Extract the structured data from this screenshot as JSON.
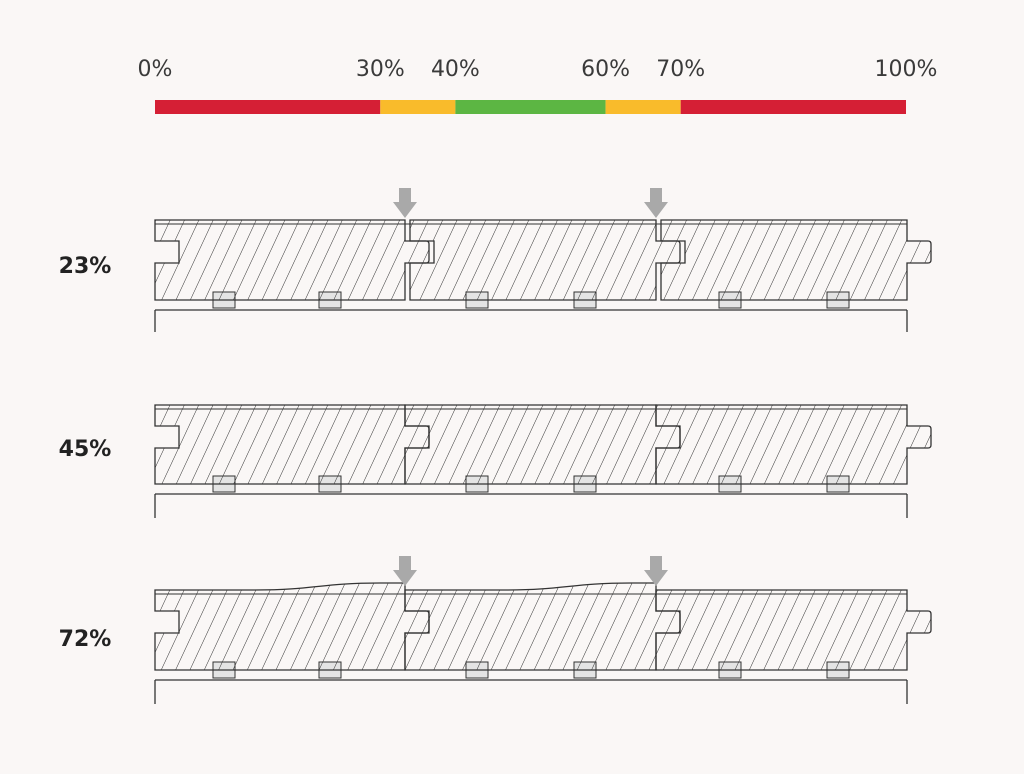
{
  "scale": {
    "ticks": [
      {
        "value": 0,
        "label": "0%"
      },
      {
        "value": 30,
        "label": "30%"
      },
      {
        "value": 40,
        "label": "40%"
      },
      {
        "value": 60,
        "label": "60%"
      },
      {
        "value": 70,
        "label": "70%"
      },
      {
        "value": 100,
        "label": "100%"
      }
    ],
    "segments": [
      {
        "from": 0,
        "to": 30,
        "color": "#d51f35"
      },
      {
        "from": 30,
        "to": 40,
        "color": "#f9bb2b"
      },
      {
        "from": 40,
        "to": 60,
        "color": "#5cb643"
      },
      {
        "from": 60,
        "to": 70,
        "color": "#f9bb2b"
      },
      {
        "from": 70,
        "to": 100,
        "color": "#d51f35"
      }
    ]
  },
  "rows": [
    {
      "label": "23%",
      "state": "gapped",
      "arrows": true
    },
    {
      "label": "45%",
      "state": "normal",
      "arrows": false
    },
    {
      "label": "72%",
      "state": "cupped",
      "arrows": true
    }
  ],
  "colors": {
    "outline": "#333333",
    "hatch": "#333333",
    "arrow": "#a9a9a9",
    "batten": "#e4e4e4"
  }
}
